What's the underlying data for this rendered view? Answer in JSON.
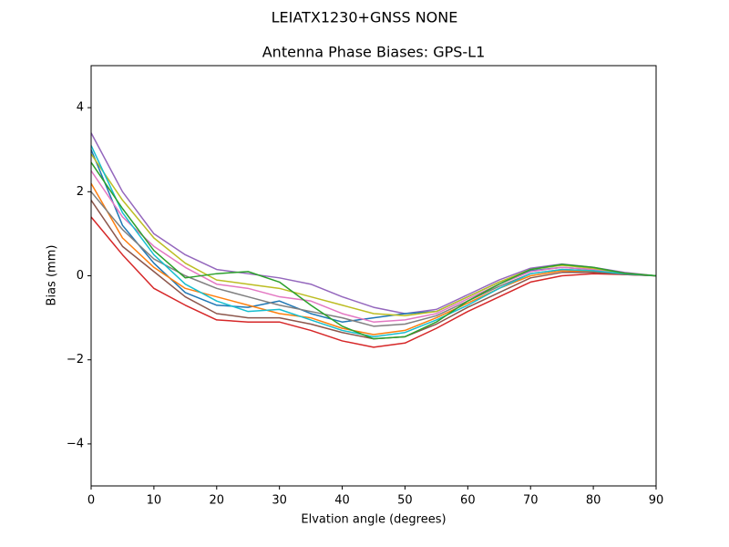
{
  "chart_data": {
    "type": "line",
    "suptitle": "LEIATX1230+GNSS NONE",
    "title": "Antenna Phase Biases: GPS-L1",
    "xlabel": "Elvation angle (degrees)",
    "ylabel": "Bias (mm)",
    "x": [
      0,
      5,
      10,
      15,
      20,
      25,
      30,
      35,
      40,
      45,
      50,
      55,
      60,
      65,
      70,
      75,
      80,
      85,
      90
    ],
    "xlim": [
      0,
      90
    ],
    "xticks": [
      0,
      10,
      20,
      30,
      40,
      50,
      60,
      70,
      80,
      90
    ],
    "ylim": [
      -5,
      5
    ],
    "yticks": [
      {
        "value": -4,
        "label": "−4"
      },
      {
        "value": -2,
        "label": "−2"
      },
      0,
      2,
      4
    ],
    "grid": false,
    "series": [
      {
        "color": "#d62728",
        "values": [
          1.4,
          0.5,
          -0.3,
          -0.7,
          -1.05,
          -1.1,
          -1.1,
          -1.3,
          -1.55,
          -1.7,
          -1.6,
          -1.25,
          -0.85,
          -0.5,
          -0.15,
          0.0,
          0.05,
          0.03,
          0
        ]
      },
      {
        "color": "#9467bd",
        "values": [
          3.4,
          2.0,
          1.0,
          0.5,
          0.15,
          0.05,
          -0.05,
          -0.2,
          -0.5,
          -0.75,
          -0.9,
          -0.8,
          -0.45,
          -0.1,
          0.18,
          0.28,
          0.2,
          0.08,
          0
        ]
      },
      {
        "color": "#1f77b4",
        "values": [
          3.0,
          1.2,
          0.3,
          -0.4,
          -0.7,
          -0.75,
          -0.6,
          -0.9,
          -1.1,
          -1.0,
          -0.9,
          -0.85,
          -0.5,
          -0.15,
          0.12,
          0.2,
          0.15,
          0.05,
          0
        ]
      },
      {
        "color": "#ff7f0e",
        "values": [
          2.2,
          0.9,
          0.2,
          -0.3,
          -0.5,
          -0.7,
          -0.9,
          -1.0,
          -1.25,
          -1.4,
          -1.3,
          -1.0,
          -0.65,
          -0.3,
          0.0,
          0.12,
          0.1,
          0.04,
          0
        ]
      },
      {
        "color": "#8c564b",
        "values": [
          1.8,
          0.7,
          0.1,
          -0.5,
          -0.9,
          -1.0,
          -1.0,
          -1.15,
          -1.35,
          -1.5,
          -1.45,
          -1.15,
          -0.75,
          -0.4,
          -0.05,
          0.08,
          0.08,
          0.03,
          0
        ]
      },
      {
        "color": "#e377c2",
        "values": [
          2.5,
          1.4,
          0.7,
          0.2,
          -0.2,
          -0.3,
          -0.5,
          -0.6,
          -0.9,
          -1.1,
          -1.05,
          -0.9,
          -0.55,
          -0.2,
          0.1,
          0.2,
          0.15,
          0.05,
          0
        ]
      },
      {
        "color": "#7f7f7f",
        "values": [
          2.0,
          1.1,
          0.4,
          0.0,
          -0.3,
          -0.5,
          -0.7,
          -0.85,
          -1.0,
          -1.2,
          -1.15,
          -0.95,
          -0.6,
          -0.25,
          0.05,
          0.15,
          0.12,
          0.04,
          0
        ]
      },
      {
        "color": "#bcbd22",
        "values": [
          2.9,
          1.8,
          0.9,
          0.3,
          -0.1,
          -0.2,
          -0.3,
          -0.5,
          -0.7,
          -0.9,
          -0.95,
          -0.85,
          -0.5,
          -0.15,
          0.15,
          0.25,
          0.18,
          0.06,
          0
        ]
      },
      {
        "color": "#17becf",
        "values": [
          3.1,
          1.5,
          0.5,
          -0.2,
          -0.6,
          -0.85,
          -0.8,
          -1.05,
          -1.3,
          -1.45,
          -1.35,
          -1.05,
          -0.7,
          -0.3,
          0.05,
          0.15,
          0.12,
          0.05,
          0
        ]
      },
      {
        "color": "#2ca02c",
        "values": [
          2.7,
          1.6,
          0.6,
          -0.05,
          0.05,
          0.1,
          -0.15,
          -0.7,
          -1.2,
          -1.5,
          -1.45,
          -1.1,
          -0.6,
          -0.2,
          0.15,
          0.27,
          0.2,
          0.06,
          0
        ]
      }
    ]
  }
}
